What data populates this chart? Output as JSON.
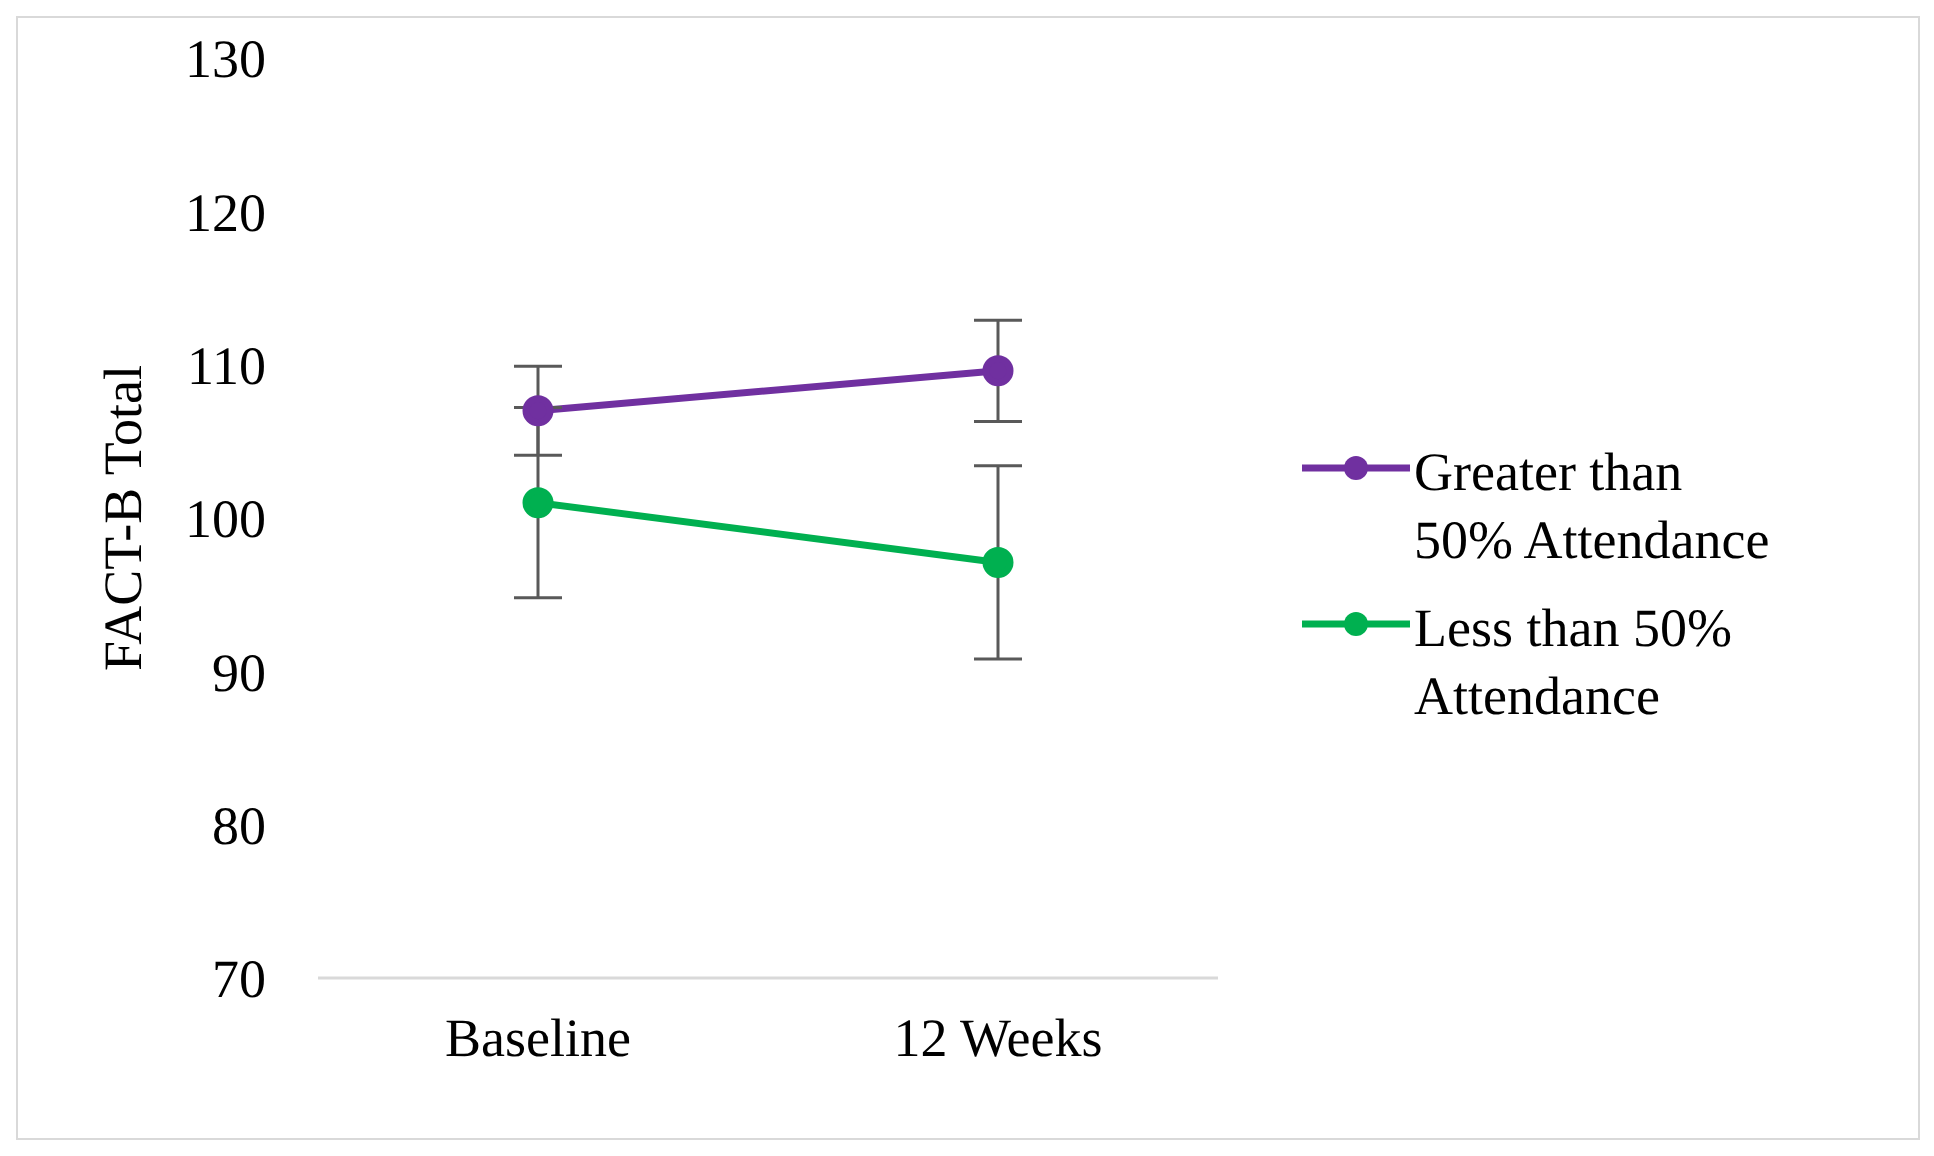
{
  "chart_data": {
    "type": "line",
    "ylabel": "FACT-B Total",
    "categories": [
      "Baseline",
      "12 Weeks"
    ],
    "series": [
      {
        "name": "Greater than 50% Attendance",
        "color": "#7030a0",
        "values": [
          107.0,
          109.6
        ],
        "errors": [
          2.9,
          3.3
        ]
      },
      {
        "name": "Less than 50% Attendance",
        "color": "#00b050",
        "values": [
          101.0,
          97.1
        ],
        "errors": [
          6.2,
          6.3
        ]
      }
    ],
    "ylim": [
      70,
      130
    ],
    "yticks": [
      70,
      80,
      90,
      100,
      110,
      120,
      130
    ],
    "grid": false,
    "legend": "right",
    "marker": "circle",
    "line_style": "solid"
  }
}
